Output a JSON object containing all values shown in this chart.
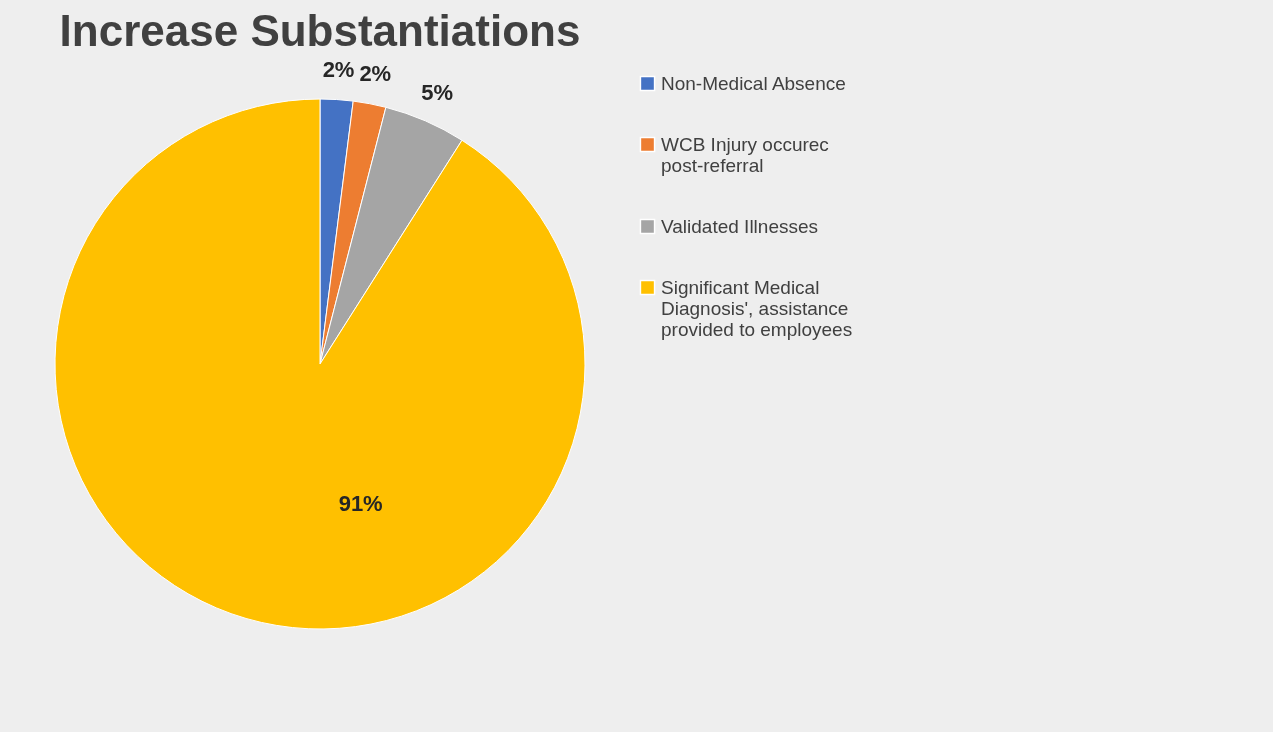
{
  "chart_data": {
    "type": "pie",
    "title": "Increase Substantiations",
    "categories": [
      "Non-Medical Absence",
      "WCB Injury occurec post-referral",
      "Validated Illnesses",
      "Significant Medical Diagnosis', assistance provided to employees"
    ],
    "values": [
      2,
      2,
      5,
      91
    ],
    "colors": [
      "#4472c4",
      "#ed7d31",
      "#a5a5a5",
      "#ffc000"
    ],
    "value_labels": [
      "2%",
      "2%",
      "5%",
      "91%"
    ],
    "legend": "right"
  }
}
